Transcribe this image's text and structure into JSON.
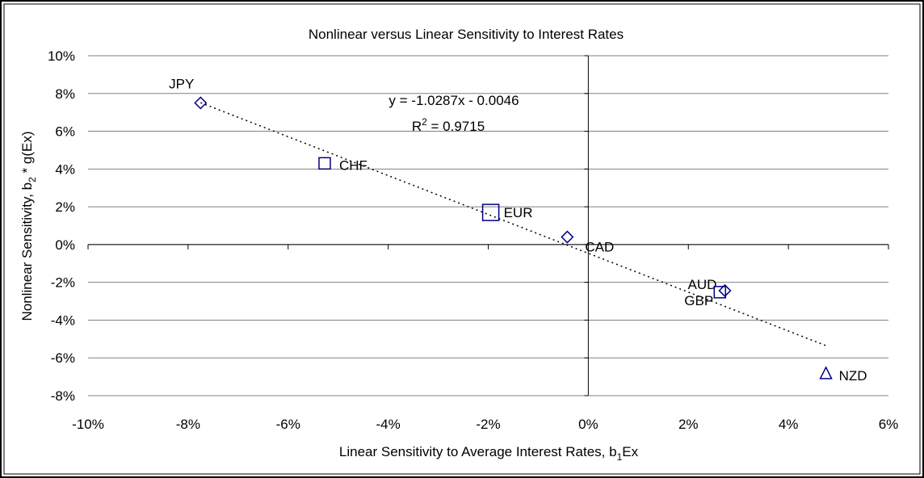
{
  "chart_data": {
    "type": "scatter",
    "title": "Nonlinear versus Linear Sensitivity to Interest Rates",
    "x_label": [
      "Linear Sensitivity to Average Interest Rates, b",
      "1",
      "Ex"
    ],
    "y_label": [
      "Nonlinear Sensitivity, b",
      "2",
      " * g(Ex)"
    ],
    "color": "#000080",
    "series": [
      {
        "labels": [
          "JPY",
          "CHF",
          "EUR",
          "CAD",
          "AUD",
          "GBP",
          "NZD"
        ],
        "markers": [
          "diamond",
          "square",
          "square-large",
          "diamond",
          "diamond",
          "square",
          "triangle"
        ],
        "x": [
          -7.75,
          -5.27,
          -1.95,
          -0.42,
          2.73,
          2.63,
          4.75
        ],
        "values": [
          7.5,
          4.3,
          1.7,
          0.4,
          -2.44,
          -2.52,
          -6.84
        ]
      }
    ],
    "trendline": {
      "x": [
        -7.75,
        4.75
      ],
      "values": [
        7.51,
        -5.35
      ],
      "equation": "y = -1.0287x - 0.0046",
      "r2_label": [
        "R",
        "2",
        " = 0.9715"
      ]
    },
    "xlim": [
      -10,
      6
    ],
    "xticks": [
      {
        "value": -10,
        "label": "-10%"
      },
      {
        "value": -8,
        "label": "-8%"
      },
      {
        "value": -6,
        "label": "-6%"
      },
      {
        "value": -4,
        "label": "-4%"
      },
      {
        "value": -2,
        "label": "-2%"
      },
      {
        "value": 0,
        "label": "0%"
      },
      {
        "value": 2,
        "label": "2%"
      },
      {
        "value": 4,
        "label": "4%"
      },
      {
        "value": 6,
        "label": "6%"
      }
    ],
    "ylim": [
      -8,
      10
    ],
    "yticks": [
      {
        "value": -8,
        "label": "-8%"
      },
      {
        "value": -6,
        "label": "-6%"
      },
      {
        "value": -4,
        "label": "-4%"
      },
      {
        "value": -2,
        "label": "-2%"
      },
      {
        "value": 0,
        "label": "0%"
      },
      {
        "value": 2,
        "label": "2%"
      },
      {
        "value": 4,
        "label": "4%"
      },
      {
        "value": 6,
        "label": "6%"
      },
      {
        "value": 8,
        "label": "8%"
      },
      {
        "value": 10,
        "label": "10%"
      }
    ],
    "grid": true
  }
}
